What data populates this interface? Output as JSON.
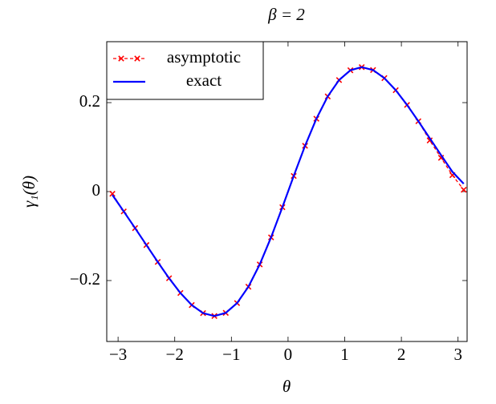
{
  "chart_data": {
    "type": "line",
    "title": "β = 2",
    "xlabel": "θ",
    "ylabel": "γ₁(θ)",
    "x": [
      -3.1,
      -2.9,
      -2.7,
      -2.5,
      -2.3,
      -2.1,
      -1.9,
      -1.7,
      -1.5,
      -1.3,
      -1.1,
      -0.9,
      -0.7,
      -0.5,
      -0.3,
      -0.1,
      0.1,
      0.3,
      0.5,
      0.7,
      0.9,
      1.1,
      1.3,
      1.5,
      1.7,
      1.9,
      2.1,
      2.3,
      2.5,
      2.7,
      2.9,
      3.1
    ],
    "series": [
      {
        "name": "asymptotic",
        "color": "#ff0000",
        "dashed": true,
        "marker": "x",
        "values": [
          -0.005,
          -0.0446,
          -0.0821,
          -0.1202,
          -0.1582,
          -0.1948,
          -0.228,
          -0.2551,
          -0.2732,
          -0.2798,
          -0.2727,
          -0.2507,
          -0.2139,
          -0.1638,
          -0.1029,
          -0.0351,
          0.0351,
          0.1029,
          0.1638,
          0.2139,
          0.2507,
          0.2727,
          0.2798,
          0.2732,
          0.2551,
          0.228,
          0.1948,
          0.1582,
          0.115,
          0.076,
          0.037,
          0.004
        ]
      },
      {
        "name": "exact",
        "color": "#0000ff",
        "dashed": false,
        "marker": null,
        "values": [
          -0.0076,
          -0.0446,
          -0.0821,
          -0.1202,
          -0.1582,
          -0.1948,
          -0.228,
          -0.2551,
          -0.2732,
          -0.2798,
          -0.2727,
          -0.2507,
          -0.2139,
          -0.1638,
          -0.1029,
          -0.0351,
          0.0351,
          0.1029,
          0.1638,
          0.2139,
          0.2507,
          0.2727,
          0.2798,
          0.2732,
          0.2551,
          0.228,
          0.1948,
          0.1582,
          0.1202,
          0.0821,
          0.0446,
          0.0176
        ]
      }
    ],
    "xlim": [
      -3.2,
      3.16
    ],
    "ylim": [
      -0.337,
      0.337
    ],
    "xticks": [
      {
        "value": -3,
        "label": "−3"
      },
      {
        "value": -2,
        "label": "−2"
      },
      {
        "value": -1,
        "label": "−1"
      },
      0,
      1,
      2,
      3
    ],
    "yticks": [
      {
        "value": -0.2,
        "label": "−0.2"
      },
      0,
      0.2
    ],
    "grid": false,
    "legend": "upper left"
  }
}
